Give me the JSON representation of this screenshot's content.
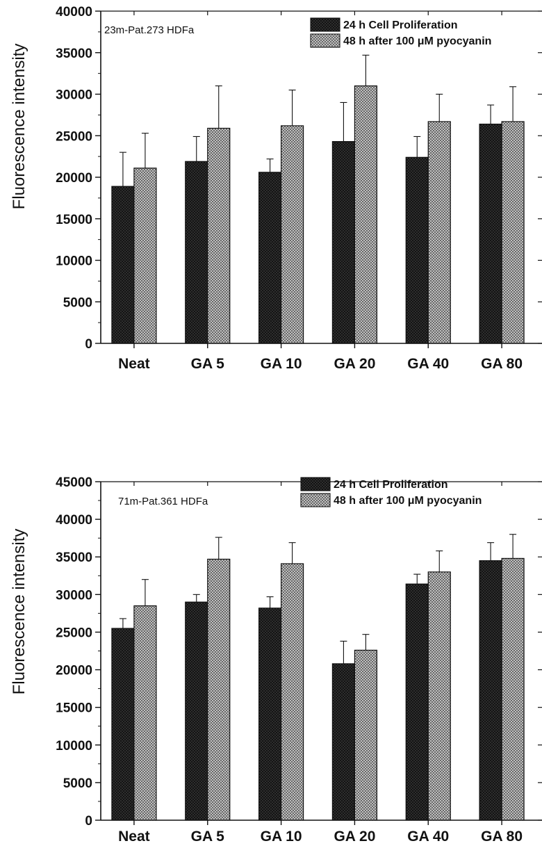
{
  "chart_data": [
    {
      "type": "bar",
      "annotation": "23m-Pat.273 HDFa",
      "ylabel": "Fluorescence intensity",
      "xlabel": "",
      "categories": [
        "Neat",
        "GA 5",
        "GA 10",
        "GA 20",
        "GA 40",
        "GA 80"
      ],
      "ylim": [
        0,
        40000
      ],
      "yticks": [
        0,
        5000,
        10000,
        15000,
        20000,
        25000,
        30000,
        35000,
        40000
      ],
      "ytick_labels": [
        "0",
        "5000",
        "10000",
        "15000",
        "20000",
        "25000",
        "30000",
        "35000",
        "40000"
      ],
      "legend_position": "top-right",
      "series": [
        {
          "name": "24 h Cell Proliferation",
          "pattern": "dark-crosshatch",
          "values": [
            18900,
            21900,
            20600,
            24300,
            22400,
            26400
          ],
          "errors": [
            4100,
            3000,
            1600,
            4700,
            2500,
            2300
          ]
        },
        {
          "name": "48 h after 100 μM pyocyanin",
          "pattern": "light-crosshatch",
          "values": [
            21100,
            25900,
            26200,
            31000,
            26700,
            26700
          ],
          "errors": [
            4200,
            5100,
            4300,
            3700,
            3300,
            4200
          ]
        }
      ]
    },
    {
      "type": "bar",
      "annotation": "71m-Pat.361 HDFa",
      "ylabel": "Fluorescence intensity",
      "xlabel": "",
      "categories": [
        "Neat",
        "GA 5",
        "GA 10",
        "GA 20",
        "GA 40",
        "GA 80"
      ],
      "ylim": [
        0,
        45000
      ],
      "yticks": [
        0,
        5000,
        10000,
        15000,
        20000,
        25000,
        30000,
        35000,
        40000,
        45000
      ],
      "ytick_labels": [
        "0",
        "5000",
        "10000",
        "15000",
        "20000",
        "25000",
        "30000",
        "35000",
        "40000",
        "45000"
      ],
      "legend_position": "top-right",
      "series": [
        {
          "name": "24 h Cell Proliferation",
          "pattern": "dark-crosshatch",
          "values": [
            25500,
            29000,
            28200,
            20800,
            31400,
            34500
          ],
          "errors": [
            1300,
            1000,
            1500,
            3000,
            1300,
            2400
          ]
        },
        {
          "name": "48 h after 100 μM pyocyanin",
          "pattern": "light-crosshatch",
          "values": [
            28500,
            34700,
            34100,
            22600,
            33000,
            34800
          ],
          "errors": [
            3500,
            2900,
            2800,
            2100,
            2800,
            3200
          ]
        }
      ]
    }
  ]
}
